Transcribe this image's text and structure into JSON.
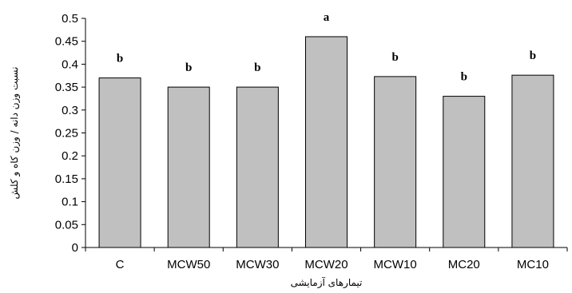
{
  "chart_data": {
    "type": "bar",
    "title": "",
    "xlabel": "تیمارهای آزمایشی",
    "ylabel": "نسبت وزن دانه / وزن کاه و کلش",
    "categories": [
      "C",
      "MCW50",
      "MCW30",
      "MCW20",
      "MCW10",
      "MC20",
      "MC10"
    ],
    "values": [
      0.37,
      0.35,
      0.35,
      0.46,
      0.373,
      0.33,
      0.376
    ],
    "letters": [
      "b",
      "b",
      "b",
      "a",
      "b",
      "b",
      "b"
    ],
    "ylim": [
      0,
      0.5
    ],
    "yticks": [
      "0",
      "0.05",
      "0.1",
      "0.15",
      "0.2",
      "0.25",
      "0.3",
      "0.35",
      "0.4",
      "0.45",
      "0.5"
    ],
    "bar_color": "#c0c0c0",
    "grid": false,
    "legend": "none"
  }
}
